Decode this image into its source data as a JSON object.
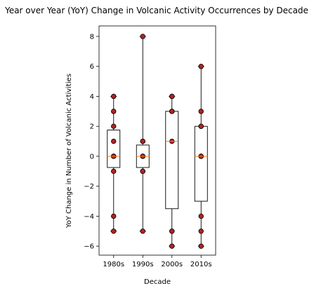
{
  "chart_data": {
    "type": "boxplot",
    "title": "Year over Year (YoY) Change in Volcanic Activity Occurrences by Decade",
    "xlabel": "Decade",
    "ylabel": "YoY Change in Number of Volcanic Activities",
    "categories": [
      "1980s",
      "1990s",
      "2000s",
      "2010s"
    ],
    "ylim": [
      -6.6,
      8.7
    ],
    "yticks": [
      -6,
      -4,
      -2,
      0,
      2,
      4,
      6,
      8
    ],
    "grid": false,
    "colors": {
      "box_edge": "#000000",
      "median": "#ff7f0e",
      "point_fill": "#b22222",
      "point_edge": "#000000"
    },
    "boxes": [
      {
        "category": "1980s",
        "whislo": -5,
        "q1": -0.75,
        "med": 0,
        "q3": 1.75,
        "whishi": 4,
        "points": [
          4,
          3,
          2,
          1,
          0,
          0,
          0,
          -1,
          -4,
          -5
        ]
      },
      {
        "category": "1990s",
        "whislo": -5,
        "q1": -0.75,
        "med": 0,
        "q3": 0.75,
        "whishi": 8,
        "points": [
          8,
          1,
          1,
          0,
          0,
          0,
          -1,
          -1,
          -5
        ]
      },
      {
        "category": "2000s",
        "whislo": -6,
        "q1": -3.5,
        "med": 1,
        "q3": 3,
        "whishi": 4,
        "points": [
          4,
          4,
          3,
          3,
          1,
          -5,
          -5,
          -6
        ]
      },
      {
        "category": "2010s",
        "whislo": -6,
        "q1": -3,
        "med": 0,
        "q3": 2,
        "whishi": 6,
        "points": [
          6,
          3,
          2,
          2,
          0,
          0,
          0,
          -4,
          -5,
          -6
        ]
      }
    ]
  }
}
